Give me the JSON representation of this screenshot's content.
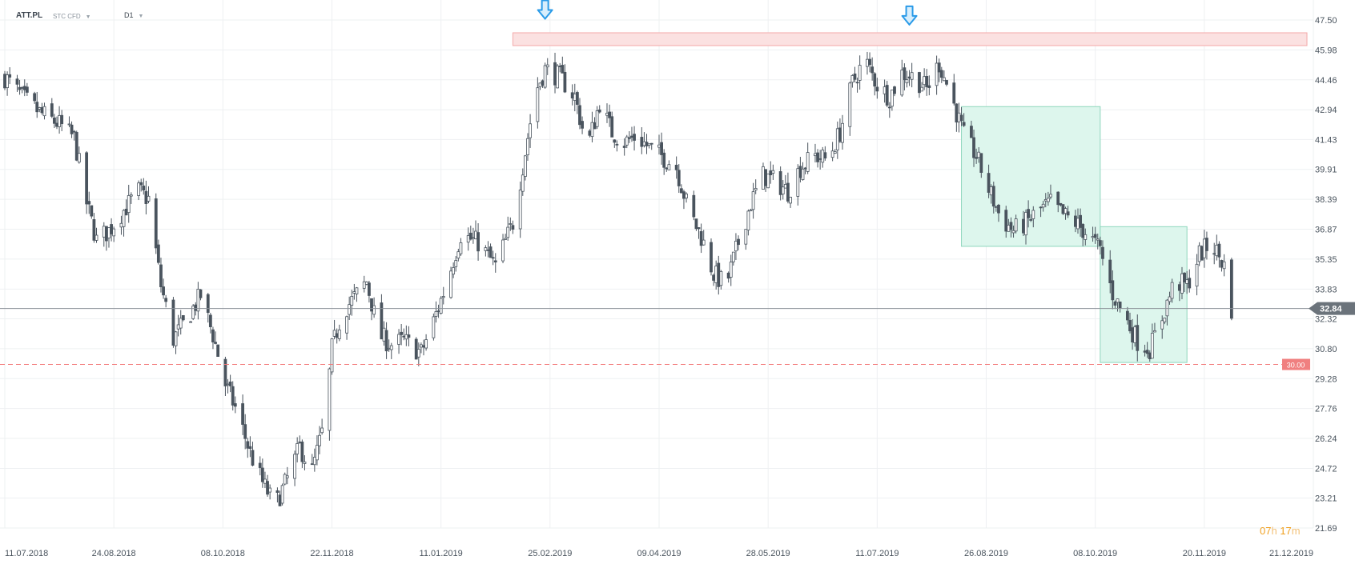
{
  "header": {
    "symbol": "ATT.PL",
    "instrument": "STC CFD",
    "timeframe": "D1"
  },
  "timer": {
    "hours": "07",
    "h_unit": "h",
    "minutes": "17",
    "m_unit": "m"
  },
  "colors": {
    "candle": "#4a545e",
    "resistance_zone": "#fbe1e1",
    "resistance_border": "#f3a9a9",
    "consolidation_fill": "#ddf6ed",
    "consolidation_border": "#8fd6bd",
    "support_line": "#f27878",
    "price_line": "#8a9097",
    "arrow": "#2b9be8",
    "price_tag": "#6b737b",
    "support_tag": "#f08080"
  },
  "chart_data": {
    "type": "candlestick",
    "title": "",
    "ylim": [
      21.69,
      47.5
    ],
    "x_range": [
      "2018-07-11",
      "2019-12-21"
    ],
    "y_ticks": [
      "47.50",
      "45.98",
      "44.46",
      "42.94",
      "41.43",
      "39.91",
      "38.39",
      "36.87",
      "35.35",
      "33.83",
      "32.32",
      "30.80",
      "29.28",
      "27.76",
      "26.24",
      "24.72",
      "23.21",
      "21.69"
    ],
    "x_ticks": [
      "11.07.2018",
      "24.08.2018",
      "08.10.2018",
      "22.11.2018",
      "11.01.2019",
      "25.02.2019",
      "09.04.2019",
      "28.05.2019",
      "11.07.2019",
      "26.08.2019",
      "08.10.2019",
      "20.11.2019",
      "21.12.2019"
    ],
    "grid": true,
    "current_price": {
      "value": 32.84,
      "label": "32.84"
    },
    "support_level": {
      "value": 30.0,
      "label": "30.00"
    },
    "resistance_zone": {
      "from_date": "2019-02-01",
      "to_date": "2019-12-21",
      "low": 46.2,
      "high": 46.85
    },
    "consolidation_zones": [
      {
        "from_date": "2019-08-01",
        "to_date": "2019-09-26",
        "low": 36.0,
        "high": 43.1
      },
      {
        "from_date": "2019-09-26",
        "to_date": "2019-10-31",
        "low": 30.1,
        "high": 37.0
      }
    ],
    "arrows": [
      {
        "date": "2019-02-14",
        "price": 47.6
      },
      {
        "date": "2019-07-11",
        "price": 47.3
      }
    ],
    "anchors": [
      [
        "2018-07-11",
        44.6
      ],
      [
        "2018-07-18",
        43.6
      ],
      [
        "2018-07-25",
        42.8
      ],
      [
        "2018-08-02",
        42.2
      ],
      [
        "2018-08-08",
        41.5
      ],
      [
        "2018-08-13",
        38.2
      ],
      [
        "2018-08-17",
        36.3
      ],
      [
        "2018-08-22",
        36.8
      ],
      [
        "2018-08-29",
        38.0
      ],
      [
        "2018-09-03",
        38.8
      ],
      [
        "2018-09-07",
        38.4
      ],
      [
        "2018-09-12",
        34.0
      ],
      [
        "2018-09-17",
        31.3
      ],
      [
        "2018-09-22",
        32.2
      ],
      [
        "2018-09-28",
        33.5
      ],
      [
        "2018-10-03",
        31.5
      ],
      [
        "2018-10-08",
        29.0
      ],
      [
        "2018-10-13",
        27.5
      ],
      [
        "2018-10-18",
        25.5
      ],
      [
        "2018-10-23",
        24.0
      ],
      [
        "2018-10-28",
        22.8
      ],
      [
        "2018-11-02",
        24.2
      ],
      [
        "2018-11-07",
        25.8
      ],
      [
        "2018-11-12",
        24.6
      ],
      [
        "2018-11-17",
        27.0
      ],
      [
        "2018-11-20",
        30.8
      ],
      [
        "2018-11-24",
        32.6
      ],
      [
        "2018-11-29",
        33.4
      ],
      [
        "2018-12-04",
        34.2
      ],
      [
        "2018-12-09",
        31.5
      ],
      [
        "2018-12-14",
        31.0
      ],
      [
        "2018-12-19",
        31.2
      ],
      [
        "2018-12-26",
        30.6
      ],
      [
        "2018-12-31",
        32.2
      ],
      [
        "2019-01-05",
        34.0
      ],
      [
        "2019-01-11",
        36.6
      ],
      [
        "2019-01-18",
        36.2
      ],
      [
        "2019-01-25",
        35.0
      ],
      [
        "2019-02-01",
        37.2
      ],
      [
        "2019-02-06",
        40.8
      ],
      [
        "2019-02-10",
        43.8
      ],
      [
        "2019-02-14",
        45.0
      ],
      [
        "2019-02-20",
        44.6
      ],
      [
        "2019-02-26",
        43.6
      ],
      [
        "2019-03-03",
        41.0
      ],
      [
        "2019-03-08",
        43.3
      ],
      [
        "2019-03-13",
        41.8
      ],
      [
        "2019-03-18",
        41.3
      ],
      [
        "2019-03-23",
        41.6
      ],
      [
        "2019-03-28",
        41.0
      ],
      [
        "2019-04-02",
        40.6
      ],
      [
        "2019-04-08",
        40.0
      ],
      [
        "2019-04-13",
        37.8
      ],
      [
        "2019-04-18",
        36.5
      ],
      [
        "2019-04-23",
        34.6
      ],
      [
        "2019-04-28",
        34.0
      ],
      [
        "2019-05-03",
        36.2
      ],
      [
        "2019-05-08",
        38.2
      ],
      [
        "2019-05-13",
        39.6
      ],
      [
        "2019-05-18",
        39.3
      ],
      [
        "2019-05-23",
        38.8
      ],
      [
        "2019-05-28",
        40.0
      ],
      [
        "2019-06-03",
        40.6
      ],
      [
        "2019-06-08",
        40.4
      ],
      [
        "2019-06-13",
        41.8
      ],
      [
        "2019-06-18",
        44.3
      ],
      [
        "2019-06-23",
        45.5
      ],
      [
        "2019-06-28",
        44.2
      ],
      [
        "2019-07-03",
        43.6
      ],
      [
        "2019-07-08",
        44.8
      ],
      [
        "2019-07-13",
        44.6
      ],
      [
        "2019-07-18",
        44.0
      ],
      [
        "2019-07-23",
        45.3
      ],
      [
        "2019-07-28",
        43.6
      ],
      [
        "2019-08-02",
        41.6
      ],
      [
        "2019-08-07",
        40.6
      ],
      [
        "2019-08-12",
        38.9
      ],
      [
        "2019-08-17",
        37.4
      ],
      [
        "2019-08-22",
        36.8
      ],
      [
        "2019-08-27",
        37.2
      ],
      [
        "2019-09-01",
        37.8
      ],
      [
        "2019-09-06",
        38.2
      ],
      [
        "2019-09-11",
        37.6
      ],
      [
        "2019-09-16",
        37.2
      ],
      [
        "2019-09-21",
        36.6
      ],
      [
        "2019-09-26",
        35.8
      ],
      [
        "2019-10-01",
        33.6
      ],
      [
        "2019-10-06",
        32.4
      ],
      [
        "2019-10-11",
        31.2
      ],
      [
        "2019-10-16",
        30.8
      ],
      [
        "2019-10-21",
        32.4
      ],
      [
        "2019-10-26",
        34.2
      ],
      [
        "2019-10-31",
        34.0
      ],
      [
        "2019-11-05",
        35.6
      ],
      [
        "2019-11-10",
        36.2
      ],
      [
        "2019-11-15",
        35.0
      ],
      [
        "2019-11-18",
        32.84
      ]
    ]
  }
}
